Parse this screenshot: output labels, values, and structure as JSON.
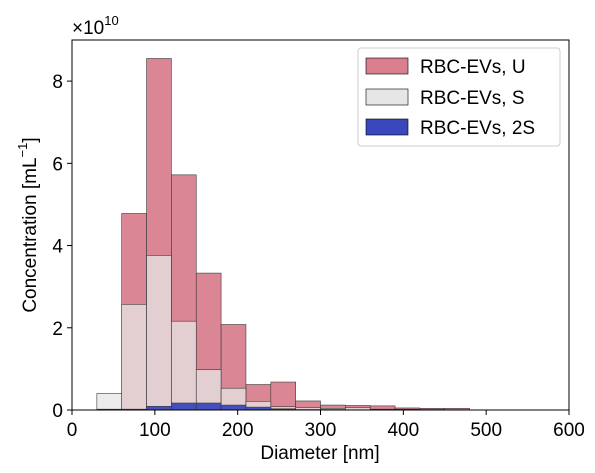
{
  "chart_data": {
    "type": "bar",
    "xlabel": "Diameter [nm]",
    "ylabel": "Concentration [mL",
    "ylabel_sup": "−1",
    "ylabel_suffix": "]",
    "scale_prefix": "×10",
    "scale_exp": "10",
    "xlim": [
      0,
      600
    ],
    "ylim": [
      0,
      9
    ],
    "xticks": [
      0,
      100,
      200,
      300,
      400,
      500,
      600
    ],
    "yticks": [
      0,
      2,
      4,
      6,
      8
    ],
    "bin_width": 30,
    "x": [
      30,
      60,
      90,
      120,
      150,
      180,
      210,
      240,
      270,
      300,
      330,
      360,
      390,
      420,
      450
    ],
    "series": [
      {
        "name": "RBC-EVs, U",
        "color": "#d97f8e",
        "values": [
          0.0,
          4.78,
          8.55,
          5.72,
          3.33,
          2.08,
          0.62,
          0.68,
          0.22,
          0.12,
          0.11,
          0.1,
          0.05,
          0.04,
          0.04
        ]
      },
      {
        "name": "RBC-EVs, S",
        "color": "#e6e6e6",
        "values": [
          0.4,
          2.57,
          3.76,
          2.16,
          0.98,
          0.53,
          0.21,
          0.08,
          0.06,
          0.04,
          0.06,
          0.02,
          0.02,
          0.01,
          0.0
        ]
      },
      {
        "name": "RBC-EVs, 2S",
        "color": "#3a48be",
        "values": [
          0.02,
          0.02,
          0.09,
          0.17,
          0.17,
          0.12,
          0.07,
          0.03,
          0.01,
          0.01,
          0.0,
          0.0,
          0.0,
          0.0,
          0.0
        ]
      }
    ],
    "legend_position": "top-right",
    "grid": false
  }
}
